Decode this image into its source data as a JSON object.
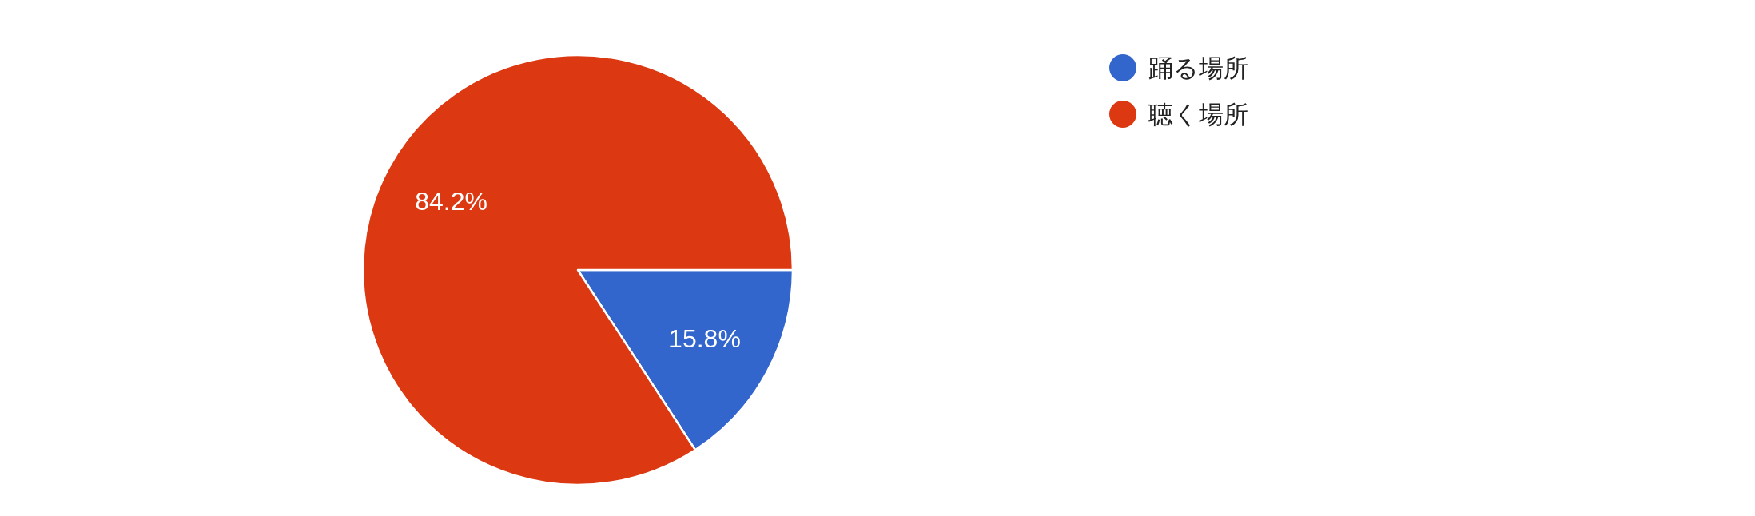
{
  "chart_data": {
    "type": "pie",
    "categories": [
      "踊る場所",
      "聴く場所"
    ],
    "values": [
      15.8,
      84.2
    ],
    "colors": [
      "#3366cc",
      "#dc3912"
    ],
    "value_labels": [
      "15.8%",
      "84.2%"
    ],
    "legend": "top right"
  }
}
